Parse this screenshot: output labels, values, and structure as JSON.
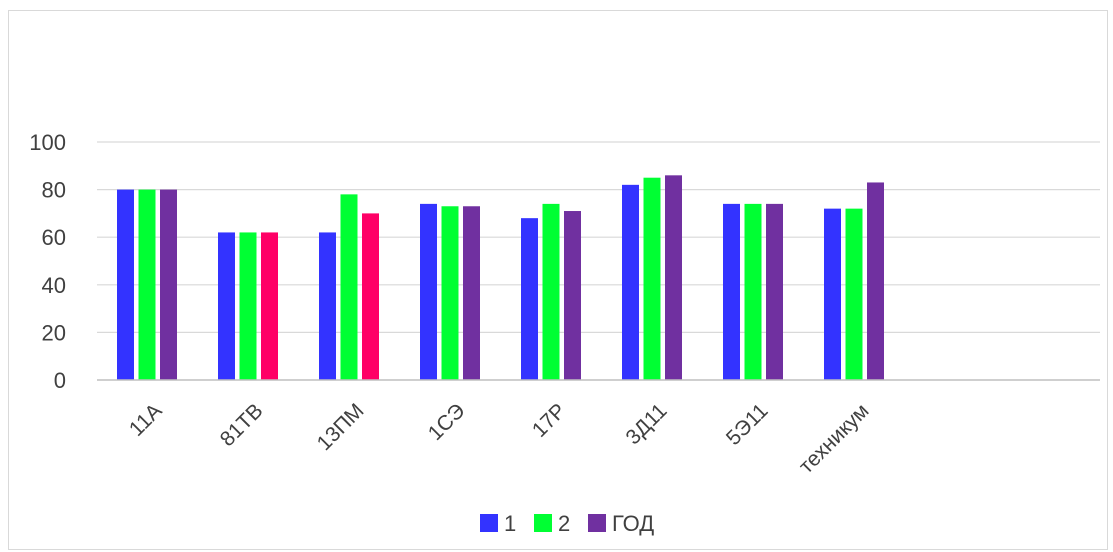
{
  "chart_data": {
    "type": "bar",
    "title": "",
    "xlabel": "",
    "ylabel": "",
    "ylim": [
      0,
      100
    ],
    "yticks": [
      0,
      20,
      40,
      60,
      80,
      100
    ],
    "grid": true,
    "legend_position": "bottom",
    "categories": [
      "11А",
      "81ТВ",
      "13ПМ",
      "1СЭ",
      "17Р",
      "3Д11",
      "5Э11",
      "техникум"
    ],
    "series": [
      {
        "name": "1",
        "color": "#3333ff",
        "values": [
          80,
          62,
          62,
          74,
          68,
          82,
          74,
          72
        ]
      },
      {
        "name": "2",
        "color": "#00ff33",
        "values": [
          80,
          62,
          78,
          73,
          74,
          85,
          74,
          72
        ]
      },
      {
        "name": "ГОД",
        "color": "#7030a0",
        "values": [
          80,
          62,
          70,
          73,
          71,
          86,
          74,
          83
        ]
      }
    ],
    "highlight_color": "#ff0066",
    "highlighted_points": [
      {
        "series": 2,
        "category": 1
      },
      {
        "series": 2,
        "category": 2
      }
    ]
  }
}
